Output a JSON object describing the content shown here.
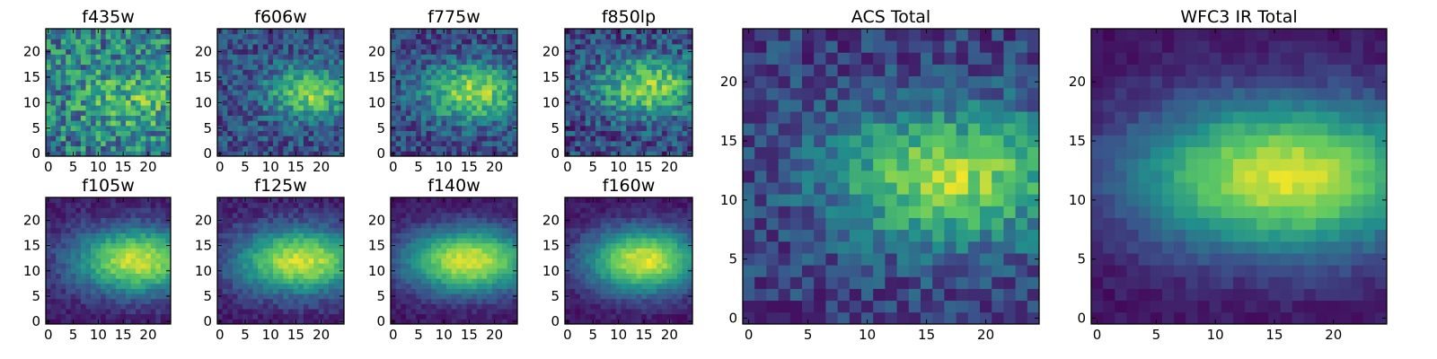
{
  "colormap": [
    "#440154",
    "#3b528b",
    "#21918c",
    "#5ec962",
    "#fde725"
  ],
  "chart_data": [
    {
      "type": "heatmap",
      "title": "f435w",
      "grid": [
        25,
        25
      ],
      "xlim": [
        0,
        24
      ],
      "ylim": [
        0,
        24
      ],
      "xticks": [
        "0",
        "5",
        "10",
        "15",
        "20"
      ],
      "yticks": [
        "0",
        "5",
        "10",
        "15",
        "20"
      ],
      "peak": [
        17,
        11
      ],
      "spread": [
        8,
        5
      ],
      "contrast": 0.25,
      "noise": 0.55,
      "rows": 25,
      "cols": 25,
      "seed": 11
    },
    {
      "type": "heatmap",
      "title": "f606w",
      "grid": [
        25,
        25
      ],
      "xlim": [
        0,
        24
      ],
      "ylim": [
        0,
        24
      ],
      "xticks": [
        "0",
        "5",
        "10",
        "15",
        "20"
      ],
      "yticks": [
        "0",
        "5",
        "10",
        "15",
        "20"
      ],
      "peak": [
        18,
        12
      ],
      "spread": [
        6,
        3.5
      ],
      "contrast": 0.55,
      "noise": 0.35,
      "rows": 25,
      "cols": 25,
      "seed": 23
    },
    {
      "type": "heatmap",
      "title": "f775w",
      "grid": [
        25,
        25
      ],
      "xlim": [
        0,
        24
      ],
      "ylim": [
        0,
        24
      ],
      "xticks": [
        "0",
        "5",
        "10",
        "15",
        "20"
      ],
      "yticks": [
        "0",
        "5",
        "10",
        "15",
        "20"
      ],
      "peak": [
        16,
        12
      ],
      "spread": [
        7,
        4
      ],
      "contrast": 0.6,
      "noise": 0.35,
      "rows": 25,
      "cols": 25,
      "seed": 37
    },
    {
      "type": "heatmap",
      "title": "f850lp",
      "grid": [
        25,
        25
      ],
      "xlim": [
        0,
        24
      ],
      "ylim": [
        0,
        24
      ],
      "xticks": [
        "0",
        "5",
        "10",
        "15",
        "20"
      ],
      "yticks": [
        "0",
        "5",
        "10",
        "15",
        "20"
      ],
      "peak": [
        16,
        13
      ],
      "spread": [
        7,
        4
      ],
      "contrast": 0.6,
      "noise": 0.4,
      "rows": 25,
      "cols": 25,
      "seed": 41
    },
    {
      "type": "heatmap",
      "title": "f105w",
      "grid": [
        25,
        25
      ],
      "xlim": [
        0,
        24
      ],
      "ylim": [
        0,
        24
      ],
      "xticks": [
        "0",
        "5",
        "10",
        "15",
        "20"
      ],
      "yticks": [
        "0",
        "5",
        "10",
        "15",
        "20"
      ],
      "peak": [
        18,
        12
      ],
      "spread": [
        9,
        4.5
      ],
      "contrast": 0.85,
      "noise": 0.15,
      "rows": 25,
      "cols": 25,
      "seed": 53
    },
    {
      "type": "heatmap",
      "title": "f125w",
      "grid": [
        25,
        25
      ],
      "xlim": [
        0,
        24
      ],
      "ylim": [
        0,
        24
      ],
      "xticks": [
        "0",
        "5",
        "10",
        "15",
        "20"
      ],
      "yticks": [
        "0",
        "5",
        "10",
        "15",
        "20"
      ],
      "peak": [
        16,
        12
      ],
      "spread": [
        9,
        4.5
      ],
      "contrast": 0.85,
      "noise": 0.15,
      "rows": 25,
      "cols": 25,
      "seed": 67
    },
    {
      "type": "heatmap",
      "title": "f140w",
      "grid": [
        25,
        25
      ],
      "xlim": [
        0,
        24
      ],
      "ylim": [
        0,
        24
      ],
      "xticks": [
        "0",
        "5",
        "10",
        "15",
        "20"
      ],
      "yticks": [
        "0",
        "5",
        "10",
        "15",
        "20"
      ],
      "peak": [
        15,
        12
      ],
      "spread": [
        9,
        4.5
      ],
      "contrast": 0.9,
      "noise": 0.12,
      "rows": 25,
      "cols": 25,
      "seed": 71
    },
    {
      "type": "heatmap",
      "title": "f160w",
      "grid": [
        25,
        25
      ],
      "xlim": [
        0,
        24
      ],
      "ylim": [
        0,
        24
      ],
      "xticks": [
        "0",
        "5",
        "10",
        "15",
        "20"
      ],
      "yticks": [
        "0",
        "5",
        "10",
        "15",
        "20"
      ],
      "peak": [
        15,
        12
      ],
      "spread": [
        8,
        4.5
      ],
      "contrast": 0.9,
      "noise": 0.12,
      "rows": 25,
      "cols": 25,
      "seed": 83
    },
    {
      "type": "heatmap",
      "title": "ACS Total",
      "grid": [
        25,
        25
      ],
      "xlim": [
        0,
        24
      ],
      "ylim": [
        0,
        24
      ],
      "xticks": [
        "0",
        "5",
        "10",
        "15",
        "20"
      ],
      "yticks": [
        "0",
        "5",
        "10",
        "15",
        "20"
      ],
      "peak": [
        17,
        12
      ],
      "spread": [
        7,
        4
      ],
      "contrast": 0.65,
      "noise": 0.3,
      "rows": 25,
      "cols": 25,
      "seed": 97
    },
    {
      "type": "heatmap",
      "title": "WFC3 IR Total",
      "grid": [
        25,
        25
      ],
      "xlim": [
        0,
        24
      ],
      "ylim": [
        0,
        24
      ],
      "xticks": [
        "0",
        "5",
        "10",
        "15",
        "20"
      ],
      "yticks": [
        "0",
        "5",
        "10",
        "15",
        "20"
      ],
      "peak": [
        16,
        12
      ],
      "spread": [
        9,
        4.5
      ],
      "contrast": 0.9,
      "noise": 0.1,
      "rows": 25,
      "cols": 25,
      "seed": 101
    }
  ]
}
